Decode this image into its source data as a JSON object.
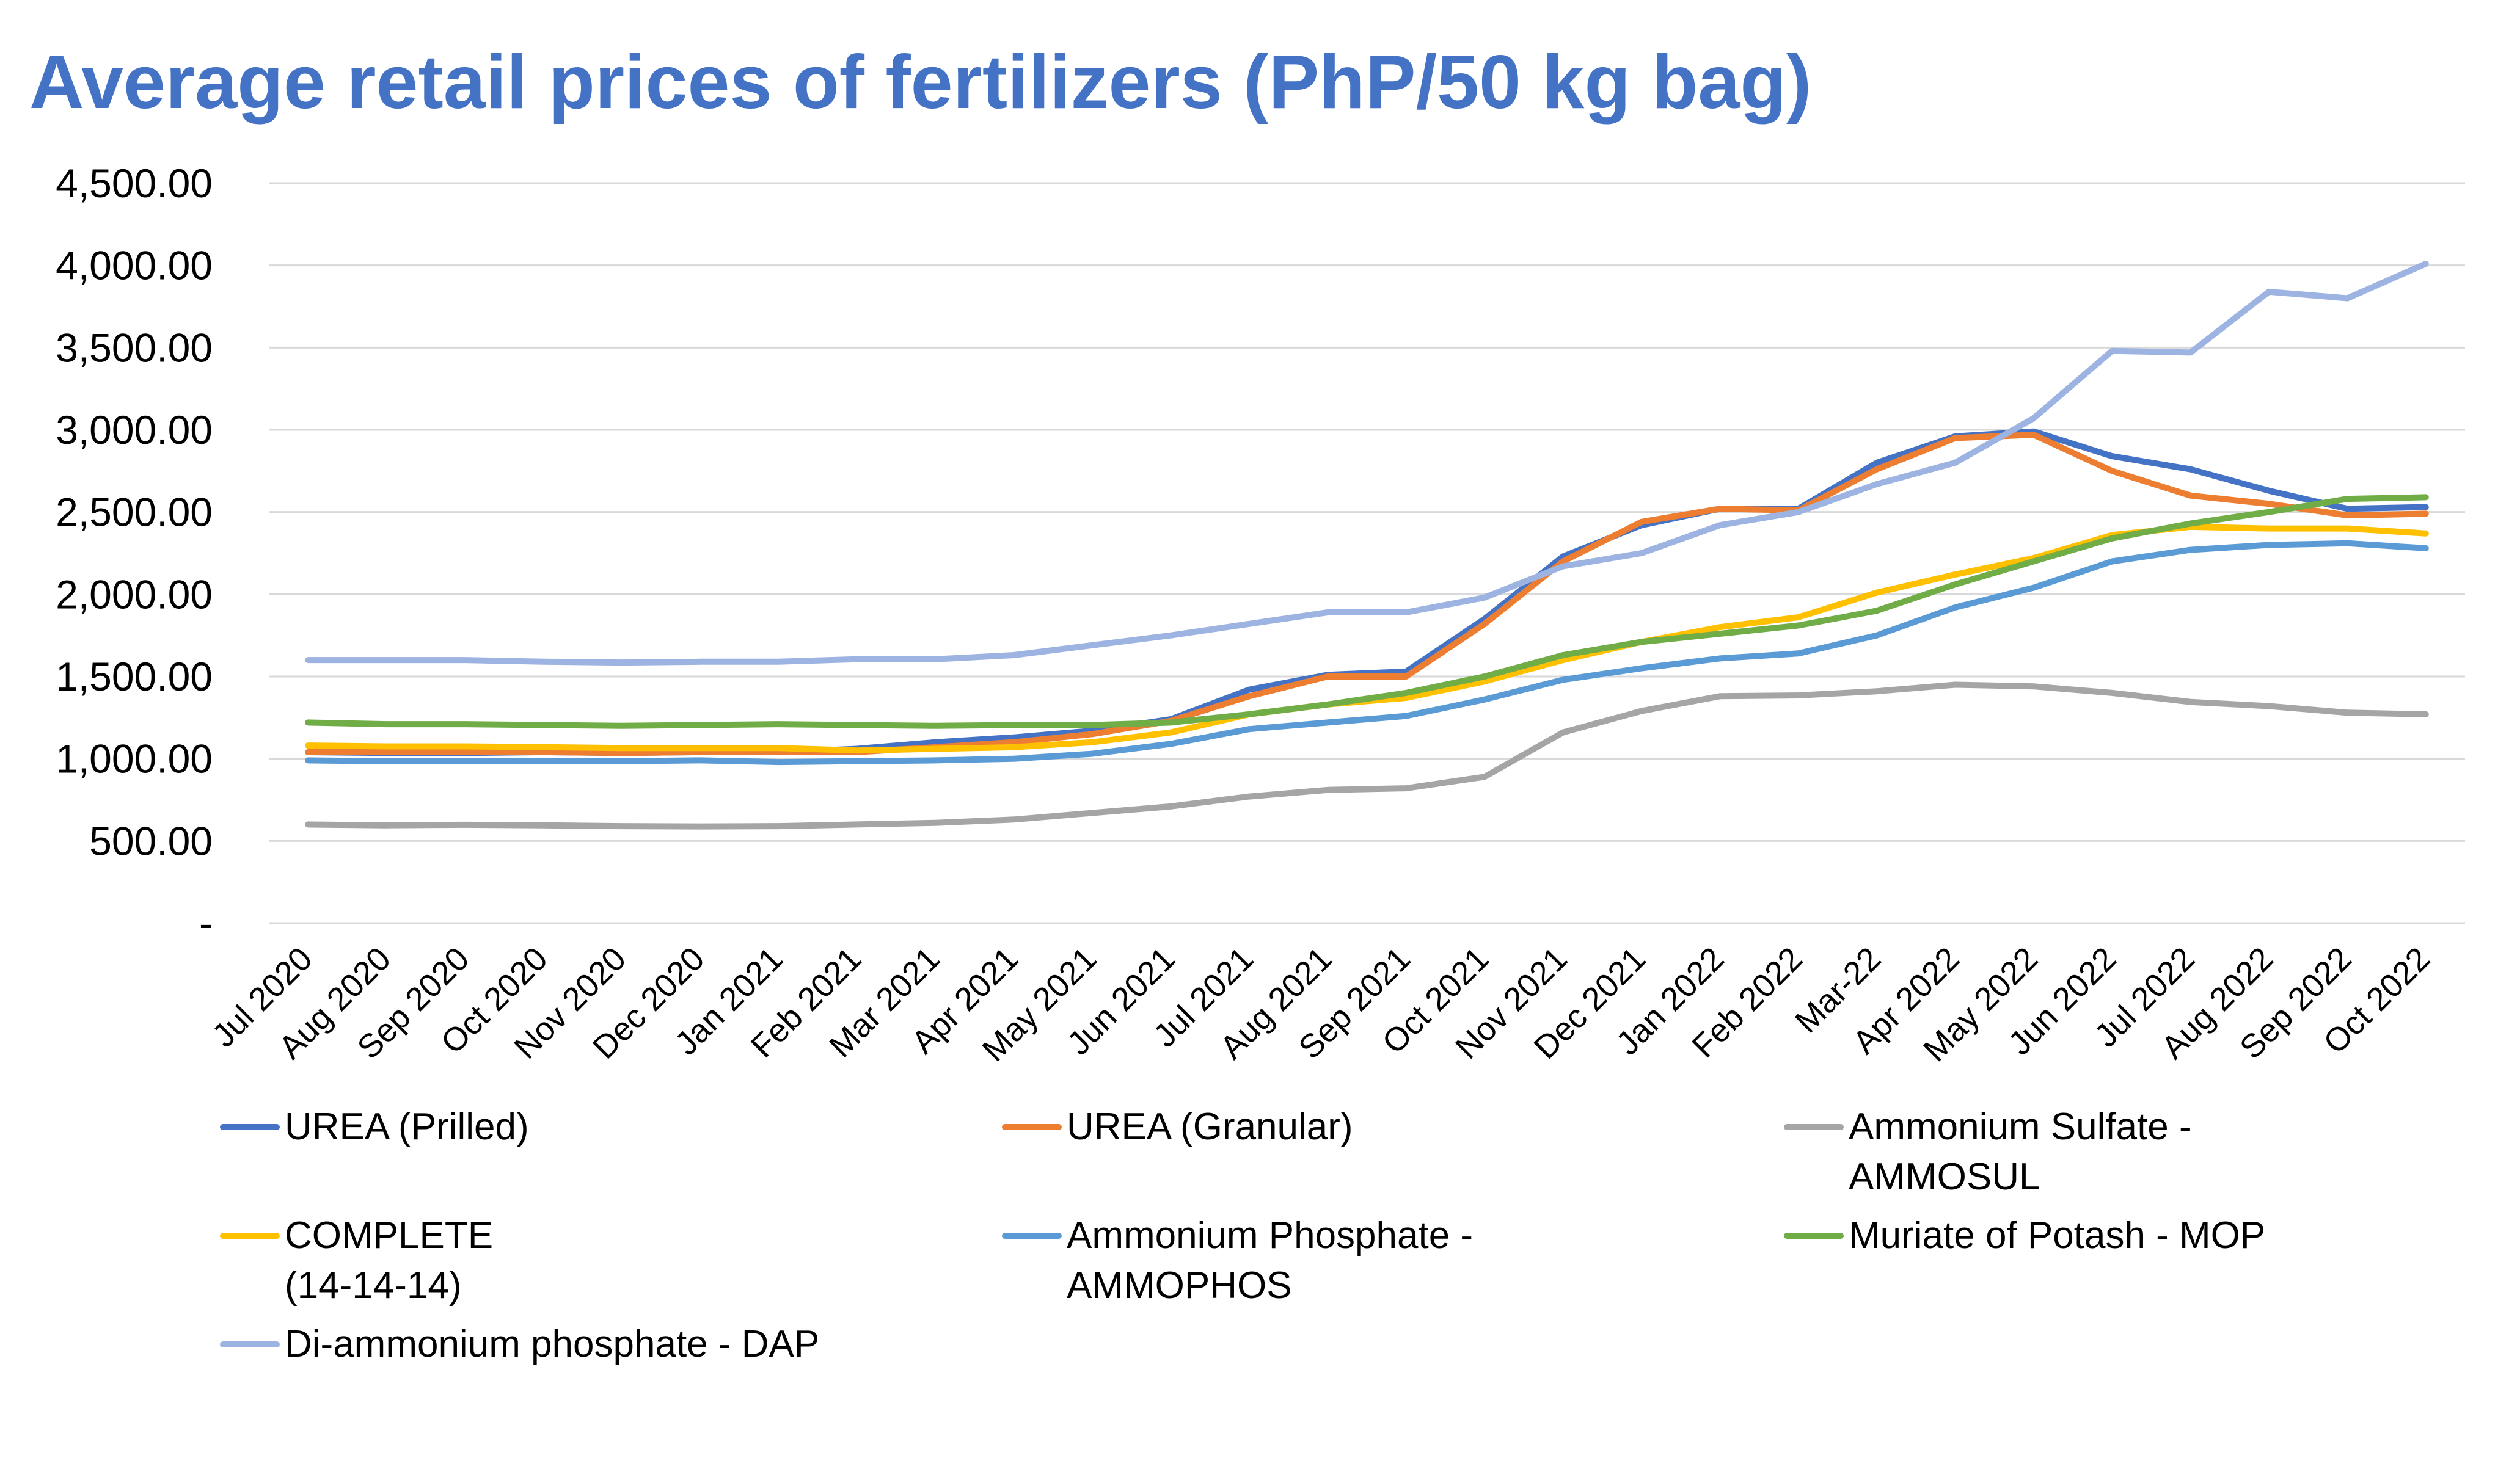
{
  "chart_data": {
    "type": "line",
    "title": "Average retail prices of fertilizers (PhP/50 kg bag)",
    "xlabel": "",
    "ylabel": "",
    "ylim": [
      0,
      4500
    ],
    "yticks": [
      "-",
      "500.00",
      "1,000.00",
      "1,500.00",
      "2,000.00",
      "2,500.00",
      "3,000.00",
      "3,500.00",
      "4,000.00",
      "4,500.00"
    ],
    "grid": true,
    "legend_position": "bottom",
    "categories": [
      "Jul 2020",
      "Aug 2020",
      "Sep 2020",
      "Oct 2020",
      "Nov 2020",
      "Dec 2020",
      "Jan 2021",
      "Feb 2021",
      "Mar 2021",
      "Apr 2021",
      "May 2021",
      "Jun 2021",
      "Jul 2021",
      "Aug 2021",
      "Sep 2021",
      "Oct 2021",
      "Nov 2021",
      "Dec 2021",
      "Jan 2022",
      "Feb 2022",
      "Mar-22",
      "Apr 2022",
      "May 2022",
      "Jun 2022",
      "Jul 2022",
      "Aug 2022",
      "Sep 2022",
      "Oct 2022"
    ],
    "series": [
      {
        "name": "UREA (Prilled)",
        "color": "#4472C4",
        "values": [
          1040,
          1035,
          1035,
          1040,
          1035,
          1040,
          1040,
          1060,
          1100,
          1130,
          1170,
          1240,
          1420,
          1510,
          1530,
          1850,
          2230,
          2420,
          2520,
          2520,
          2800,
          2960,
          2990,
          2840,
          2760,
          2630,
          2520,
          2530
        ]
      },
      {
        "name": "UREA (Granular)",
        "color": "#ED7D31",
        "values": [
          1040,
          1040,
          1040,
          1040,
          1035,
          1040,
          1040,
          1040,
          1070,
          1100,
          1150,
          1230,
          1380,
          1500,
          1500,
          1820,
          2200,
          2440,
          2520,
          2510,
          2760,
          2950,
          2970,
          2750,
          2600,
          2550,
          2480,
          2490
        ]
      },
      {
        "name": "Ammonium Sulfate -\nAMMOSUL",
        "color": "#A5A5A5",
        "values": [
          600,
          595,
          598,
          595,
          590,
          588,
          590,
          600,
          610,
          630,
          670,
          710,
          770,
          810,
          820,
          890,
          1160,
          1290,
          1380,
          1385,
          1410,
          1450,
          1440,
          1400,
          1345,
          1320,
          1280,
          1270
        ]
      },
      {
        "name": "COMPLETE\n(14-14-14)",
        "color": "#FFC000",
        "values": [
          1080,
          1075,
          1075,
          1070,
          1065,
          1065,
          1065,
          1050,
          1060,
          1070,
          1100,
          1160,
          1270,
          1330,
          1370,
          1470,
          1600,
          1710,
          1800,
          1860,
          2010,
          2120,
          2220,
          2360,
          2410,
          2400,
          2400,
          2370
        ]
      },
      {
        "name": "Ammonium Phosphate -\nAMMOPHOS",
        "color": "#5B9BD5",
        "values": [
          990,
          985,
          985,
          985,
          985,
          990,
          980,
          985,
          990,
          1000,
          1030,
          1090,
          1180,
          1220,
          1260,
          1360,
          1480,
          1550,
          1610,
          1640,
          1750,
          1920,
          2040,
          2200,
          2270,
          2300,
          2310,
          2280
        ]
      },
      {
        "name": "Muriate of Potash - MOP",
        "color": "#70AD47",
        "values": [
          1220,
          1210,
          1210,
          1205,
          1200,
          1205,
          1210,
          1205,
          1200,
          1205,
          1205,
          1220,
          1270,
          1330,
          1400,
          1500,
          1630,
          1710,
          1760,
          1810,
          1900,
          2060,
          2200,
          2340,
          2430,
          2500,
          2580,
          2590
        ]
      },
      {
        "name": "Di-ammonium phosphate - DAP",
        "color": "#9DB3E1",
        "values": [
          1600,
          1600,
          1600,
          1590,
          1585,
          1590,
          1590,
          1605,
          1605,
          1630,
          1690,
          1750,
          1820,
          1890,
          1890,
          1980,
          2170,
          2250,
          2420,
          2500,
          2670,
          2800,
          3070,
          3480,
          3470,
          3840,
          3800,
          4010
        ]
      }
    ]
  }
}
